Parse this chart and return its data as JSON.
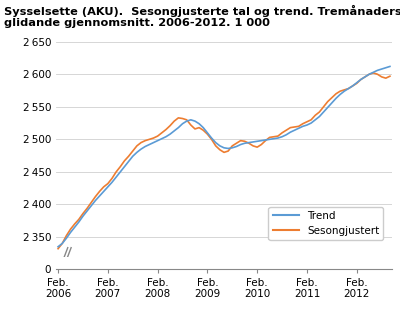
{
  "title_line1": "Sysselsette (AKU).  Sesongjusterte tal og trend. Tremånaders",
  "title_line2": "glidande gjennomsnitt. 2006-2012. 1 000",
  "ylim_main": [
    2320,
    2660
  ],
  "ylim_zero": [
    0,
    0
  ],
  "yticks": [
    2350,
    2400,
    2450,
    2500,
    2550,
    2600,
    2650
  ],
  "trend_color": "#5b9bd5",
  "seasonal_color": "#ed7d31",
  "background_color": "#ffffff",
  "grid_color": "#d0d0d0",
  "legend_labels": [
    "Trend",
    "Sesongjustert"
  ],
  "x_labels": [
    "Feb.\n2006",
    "Feb.\n2007",
    "Feb.\n2008",
    "Feb.\n2009",
    "Feb.\n2010",
    "Feb.\n2011",
    "Feb.\n2012"
  ],
  "x_tick_positions": [
    0,
    12,
    24,
    36,
    48,
    60,
    72
  ],
  "trend_data": [
    2335,
    2340,
    2348,
    2357,
    2365,
    2373,
    2382,
    2390,
    2398,
    2406,
    2413,
    2420,
    2427,
    2434,
    2442,
    2450,
    2458,
    2466,
    2474,
    2480,
    2485,
    2489,
    2492,
    2495,
    2498,
    2501,
    2504,
    2508,
    2513,
    2518,
    2524,
    2528,
    2530,
    2528,
    2524,
    2518,
    2510,
    2502,
    2495,
    2490,
    2487,
    2486,
    2487,
    2489,
    2492,
    2494,
    2495,
    2496,
    2497,
    2498,
    2499,
    2500,
    2501,
    2502,
    2504,
    2507,
    2511,
    2514,
    2517,
    2520,
    2522,
    2525,
    2530,
    2535,
    2542,
    2549,
    2556,
    2563,
    2569,
    2574,
    2578,
    2582,
    2587,
    2592,
    2596,
    2600,
    2603,
    2606,
    2608,
    2610,
    2612
  ],
  "seasonal_data": [
    2332,
    2340,
    2352,
    2362,
    2370,
    2377,
    2386,
    2394,
    2403,
    2412,
    2420,
    2427,
    2432,
    2440,
    2450,
    2458,
    2467,
    2474,
    2482,
    2490,
    2495,
    2498,
    2500,
    2502,
    2505,
    2510,
    2515,
    2521,
    2528,
    2533,
    2532,
    2530,
    2522,
    2516,
    2518,
    2514,
    2508,
    2500,
    2490,
    2484,
    2480,
    2482,
    2490,
    2494,
    2498,
    2497,
    2494,
    2490,
    2488,
    2492,
    2498,
    2503,
    2504,
    2505,
    2510,
    2514,
    2518,
    2519,
    2520,
    2524,
    2527,
    2530,
    2537,
    2542,
    2550,
    2558,
    2564,
    2570,
    2574,
    2576,
    2578,
    2582,
    2586,
    2592,
    2596,
    2600,
    2602,
    2600,
    2596,
    2594,
    2597
  ]
}
